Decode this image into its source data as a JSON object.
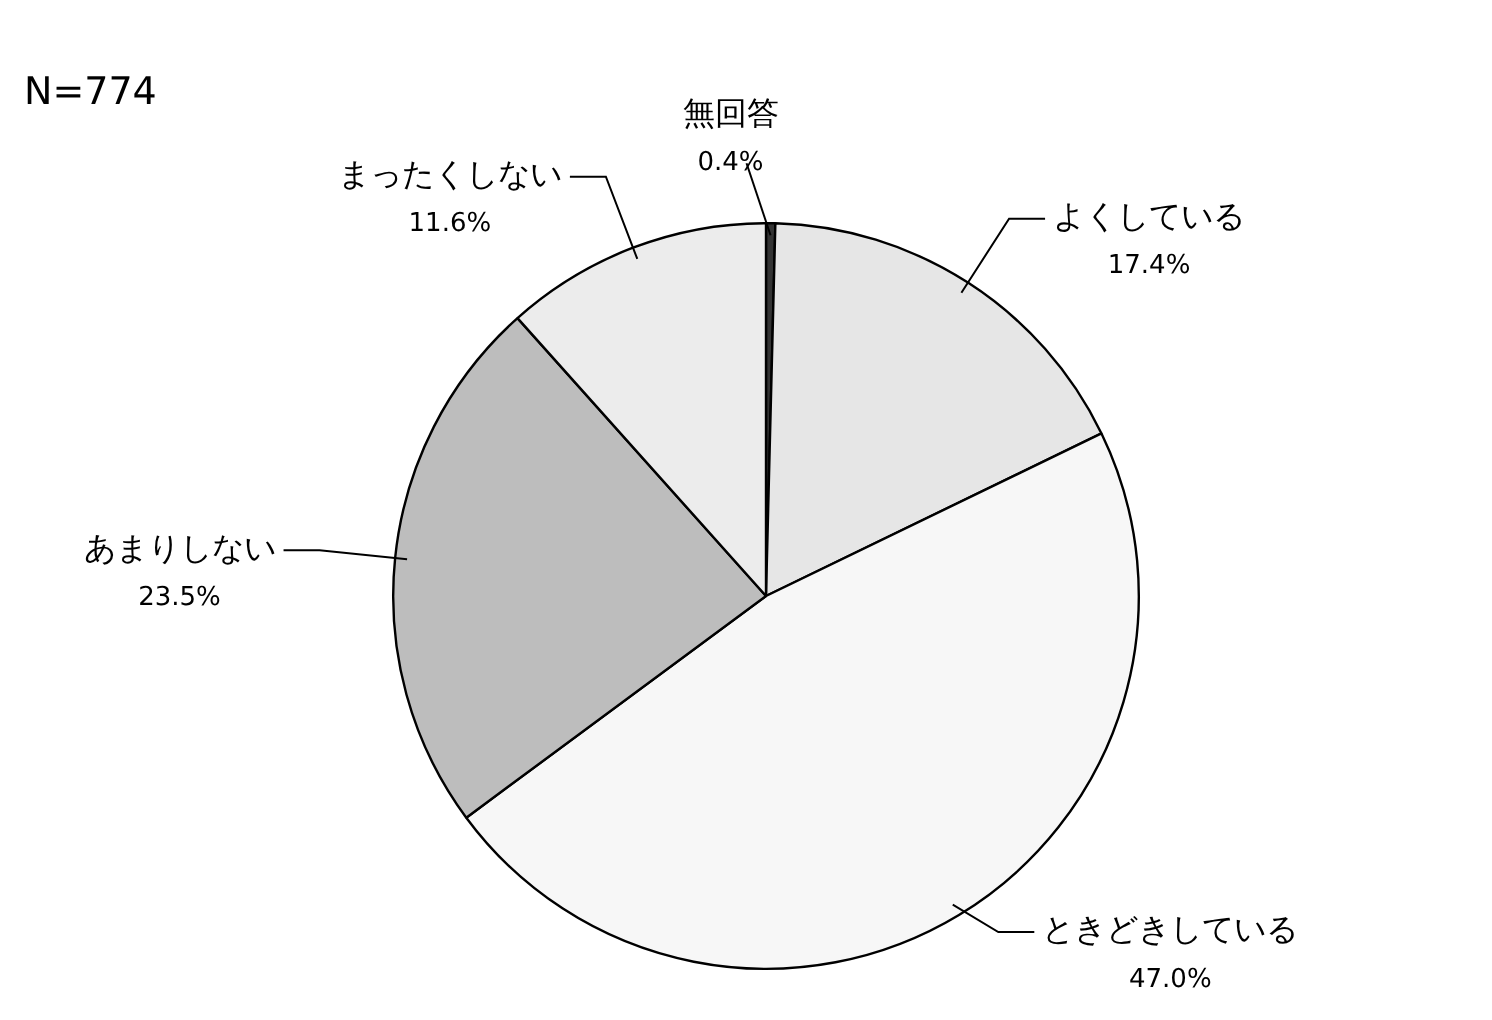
{
  "chart_data": {
    "type": "pie",
    "categories": [
      "無回答",
      "よくしている",
      "ときどきしている",
      "あまりしない",
      "まったくしない"
    ],
    "values": [
      0.4,
      17.4,
      47.0,
      23.5,
      11.6
    ],
    "value_labels": [
      "0.4%",
      "17.4%",
      "47.0%",
      "23.5%",
      "11.6%"
    ],
    "colors": [
      "#333333",
      "#e6e6e6",
      "#f7f7f7",
      "#bdbdbd",
      "#ececec"
    ],
    "legend": false,
    "annotations": [
      "N=774"
    ]
  }
}
